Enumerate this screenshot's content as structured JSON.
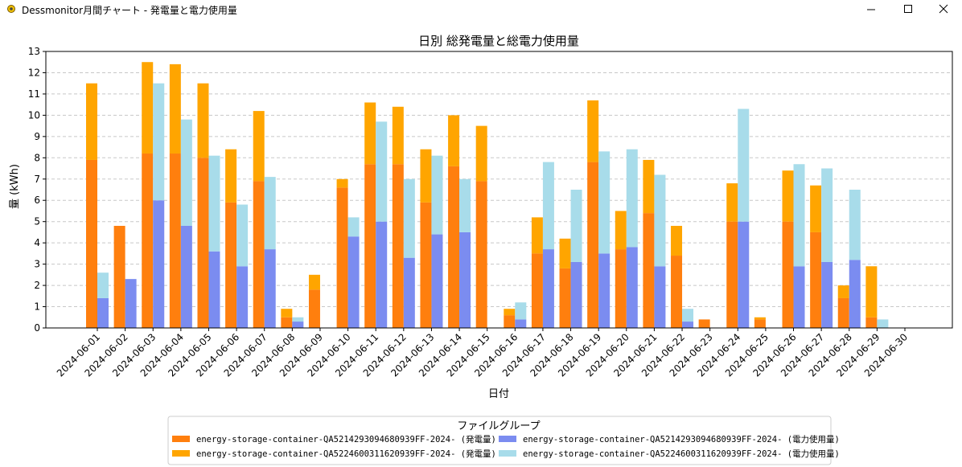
{
  "window": {
    "title": "Dessmonitor月間チャート - 発電量と電力使用量",
    "icons": {
      "app": "gear-sun-icon",
      "minimize": "minimize-icon",
      "maximize": "maximize-icon",
      "close": "close-icon"
    }
  },
  "chart_data": {
    "type": "bar",
    "title": "日別 総発電量と総電力使用量",
    "xlabel": "日付",
    "ylabel": "量 (kWh)",
    "ylim": [
      0,
      13
    ],
    "yticks": [
      0,
      1,
      2,
      3,
      4,
      5,
      6,
      7,
      8,
      9,
      10,
      11,
      12,
      13
    ],
    "grid": "y-dashed",
    "legend_title": "ファイルグループ",
    "legend_position": "bottom-center",
    "categories": [
      "2024-06-01",
      "2024-06-02",
      "2024-06-03",
      "2024-06-04",
      "2024-06-05",
      "2024-06-06",
      "2024-06-07",
      "2024-06-08",
      "2024-06-09",
      "2024-06-10",
      "2024-06-11",
      "2024-06-12",
      "2024-06-13",
      "2024-06-14",
      "2024-06-15",
      "2024-06-16",
      "2024-06-17",
      "2024-06-18",
      "2024-06-19",
      "2024-06-20",
      "2024-06-21",
      "2024-06-22",
      "2024-06-23",
      "2024-06-24",
      "2024-06-25",
      "2024-06-26",
      "2024-06-27",
      "2024-06-28",
      "2024-06-29",
      "2024-06-30"
    ],
    "stacks": [
      "generation",
      "usage"
    ],
    "series": [
      {
        "name": "energy-storage-container-QA5214293094680939FF-2024- (発電量)",
        "stack": "generation",
        "color": "#ff7f0e",
        "values": [
          7.9,
          4.8,
          8.2,
          8.2,
          8.0,
          5.9,
          6.9,
          0.5,
          1.8,
          6.6,
          7.7,
          7.7,
          5.9,
          7.6,
          6.9,
          0.6,
          3.5,
          2.8,
          7.8,
          3.7,
          5.4,
          3.4,
          0.4,
          5.0,
          0.4,
          5.0,
          4.5,
          1.4,
          0.5,
          0
        ]
      },
      {
        "name": "energy-storage-container-QA5224600311620939FF-2024- (発電量)",
        "stack": "generation",
        "color": "#ffa500",
        "values": [
          3.6,
          0,
          4.3,
          4.2,
          3.5,
          2.5,
          3.3,
          0.4,
          0.7,
          0.4,
          2.9,
          2.7,
          2.5,
          2.4,
          2.6,
          0.3,
          1.7,
          1.4,
          2.9,
          1.8,
          2.5,
          1.4,
          0,
          1.8,
          0.1,
          2.4,
          2.2,
          0.6,
          2.4,
          0
        ]
      },
      {
        "name": "energy-storage-container-QA5214293094680939FF-2024- (電力使用量)",
        "stack": "usage",
        "color": "#7b8cf0",
        "values": [
          1.4,
          2.3,
          6.0,
          4.8,
          3.6,
          2.9,
          3.7,
          0.3,
          0,
          4.3,
          5.0,
          3.3,
          4.4,
          4.5,
          0,
          0.4,
          3.7,
          3.1,
          3.5,
          3.8,
          2.9,
          0.3,
          0,
          5.0,
          0,
          2.9,
          3.1,
          3.2,
          0,
          0
        ]
      },
      {
        "name": "energy-storage-container-QA5224600311620939FF-2024- (電力使用量)",
        "stack": "usage",
        "color": "#a8dcea",
        "values": [
          1.2,
          0,
          5.5,
          5.0,
          4.5,
          2.9,
          3.4,
          0.2,
          0,
          0.9,
          4.7,
          3.7,
          3.7,
          2.5,
          0,
          0.8,
          4.1,
          3.4,
          4.8,
          4.6,
          4.3,
          0.6,
          0,
          5.3,
          0,
          4.8,
          4.4,
          3.3,
          0.4,
          0
        ]
      }
    ]
  }
}
